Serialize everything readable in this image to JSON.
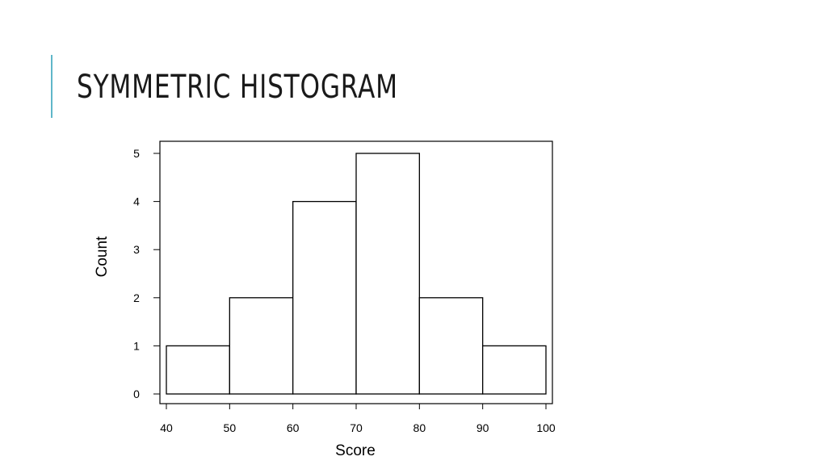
{
  "slide": {
    "title": "SYMMETRIC HISTOGRAM",
    "accent_color": "#5fb7c9"
  },
  "chart_data": {
    "type": "bar",
    "title": "",
    "xlabel": "Score",
    "ylabel": "Count",
    "bins": [
      {
        "start": 40,
        "end": 50,
        "count": 1
      },
      {
        "start": 50,
        "end": 60,
        "count": 2
      },
      {
        "start": 60,
        "end": 70,
        "count": 4
      },
      {
        "start": 70,
        "end": 80,
        "count": 5
      },
      {
        "start": 80,
        "end": 90,
        "count": 2
      },
      {
        "start": 90,
        "end": 100,
        "count": 1
      }
    ],
    "x_ticks": [
      40,
      50,
      60,
      70,
      80,
      90,
      100
    ],
    "y_ticks": [
      0,
      1,
      2,
      3,
      4,
      5
    ],
    "xlim": [
      40,
      100
    ],
    "ylim": [
      0,
      5
    ],
    "grid": false,
    "bar_fill": "#ffffff",
    "bar_stroke": "#000000"
  }
}
